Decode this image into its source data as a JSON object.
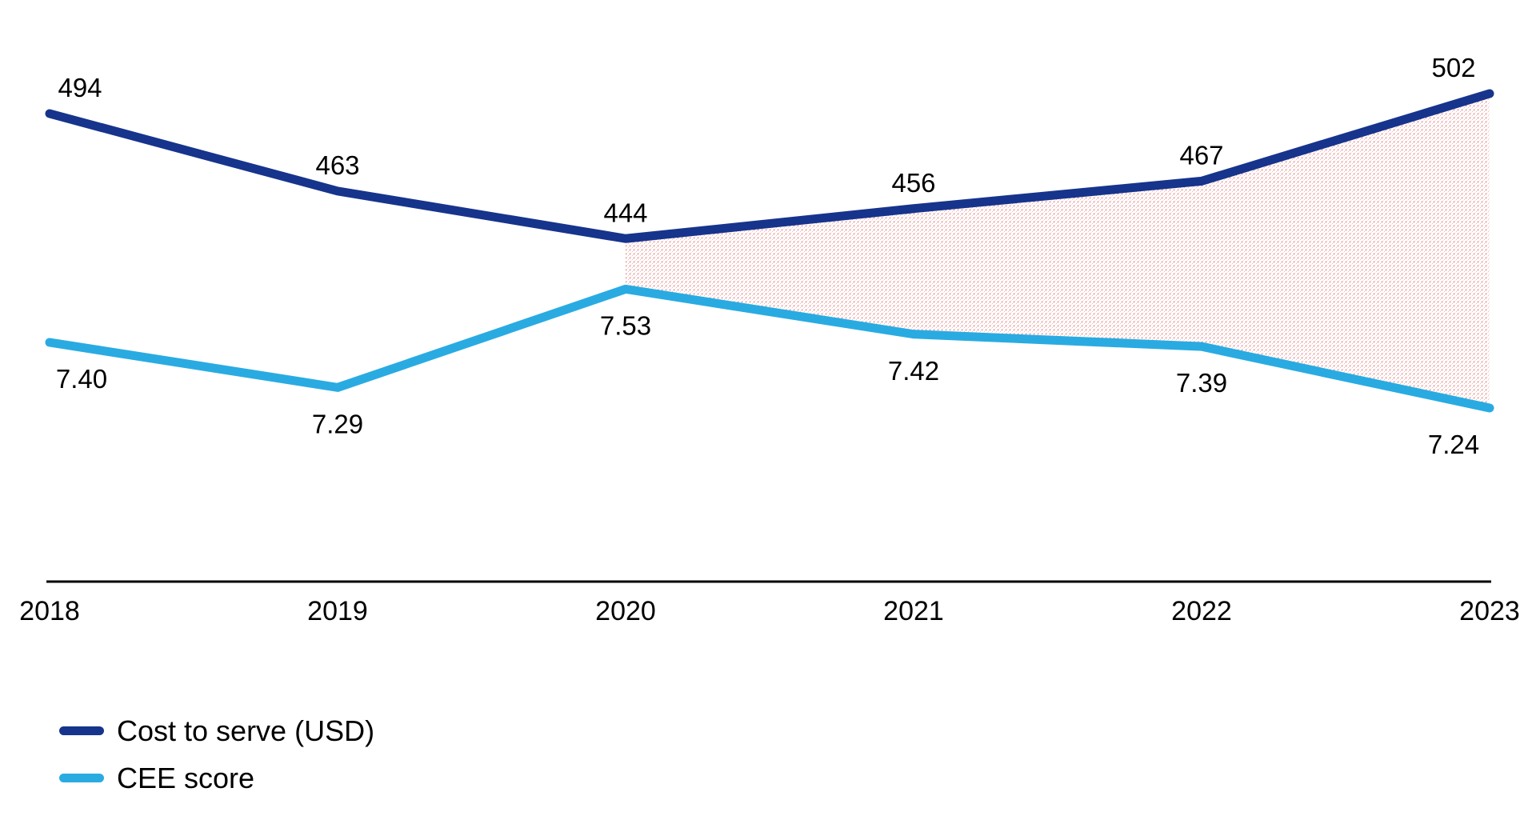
{
  "chart_data": {
    "type": "line",
    "title": "",
    "x": [
      2018,
      2019,
      2020,
      2021,
      2022,
      2023
    ],
    "x_tick_labels": [
      "2018",
      "2019",
      "2020",
      "2021",
      "2022",
      "2023"
    ],
    "series": [
      {
        "name": "Cost to serve (USD)",
        "values": [
          494,
          463,
          444,
          456,
          467,
          502
        ],
        "labels": [
          "494",
          "463",
          "444",
          "456",
          "467",
          "502"
        ],
        "color": "#16348C",
        "label_position": "above"
      },
      {
        "name": "CEE score",
        "values": [
          7.4,
          7.29,
          7.53,
          7.42,
          7.39,
          7.24
        ],
        "labels": [
          "7.40",
          "7.29",
          "7.53",
          "7.42",
          "7.39",
          "7.24"
        ],
        "color": "#29ABE2",
        "label_position": "below"
      }
    ],
    "highlight_band": {
      "description": "hatched divergence area between the two lines",
      "from_x": 2020,
      "to_x": 2023,
      "style": "diagonal-dotted-hatch",
      "hatch_color": "#E26868"
    },
    "axes": {
      "x_axis_visible": true,
      "y_axis_visible": false,
      "axis_color": "#000000"
    },
    "grid": false,
    "legend_position": "bottom-left"
  },
  "legend": {
    "items": [
      {
        "label": "Cost to serve (USD)",
        "color": "#16348C"
      },
      {
        "label": "CEE score",
        "color": "#29ABE2"
      }
    ]
  }
}
